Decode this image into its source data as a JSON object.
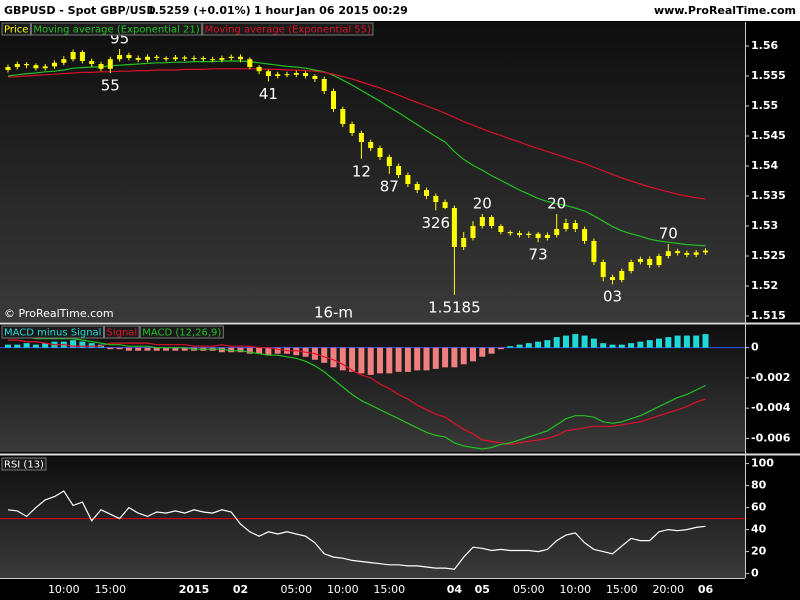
{
  "header": {
    "symbol": "GBPUSD - Spot GBP/USD",
    "quote": "1.5259 (+0.01%)",
    "timeframe": "1 hour",
    "timestamp": "Jan 06 2015 00:29",
    "website": "www.ProRealTime.com"
  },
  "chart_data": [
    {
      "type": "candlestick",
      "name": "Price",
      "color": "#ffff00",
      "source": "© ProRealTime.com",
      "categories": [
        null,
        null,
        null,
        null,
        null,
        null,
        "10:00",
        null,
        null,
        null,
        null,
        "15:00",
        null,
        null,
        null,
        null,
        null,
        null,
        null,
        null,
        "2015",
        null,
        null,
        null,
        null,
        "02",
        null,
        null,
        null,
        null,
        null,
        "05:00",
        null,
        null,
        null,
        null,
        "10:00",
        null,
        null,
        null,
        null,
        "15:00",
        null,
        null,
        null,
        null,
        null,
        null,
        "04",
        null,
        null,
        "05",
        null,
        null,
        null,
        null,
        "05:00",
        null,
        null,
        null,
        null,
        "10:00",
        null,
        null,
        null,
        null,
        "15:00",
        null,
        null,
        null,
        null,
        "20:00",
        null,
        null,
        null,
        "06"
      ],
      "open": [
        1.556,
        1.5565,
        1.557,
        1.5568,
        1.5563,
        1.5566,
        1.5572,
        1.5578,
        1.559,
        1.5575,
        1.557,
        1.5562,
        1.5578,
        1.5585,
        1.558,
        1.5577,
        1.5582,
        1.558,
        1.5578,
        1.5581,
        1.5579,
        1.558,
        1.5578,
        1.5577,
        1.558,
        1.5582,
        1.5578,
        1.5565,
        1.5558,
        1.555,
        1.5553,
        1.5552,
        1.5555,
        1.555,
        1.5545,
        1.5525,
        1.5495,
        1.547,
        1.5455,
        1.544,
        1.543,
        1.5415,
        1.54,
        1.5385,
        1.537,
        1.536,
        1.535,
        1.534,
        1.533,
        1.5265,
        1.528,
        1.53,
        1.5315,
        1.53,
        1.529,
        1.5288,
        1.5285,
        1.5287,
        1.528,
        1.5285,
        1.5295,
        1.5305,
        1.5295,
        1.5275,
        1.524,
        1.5215,
        1.521,
        1.5225,
        1.524,
        1.5245,
        1.5235,
        1.525,
        1.5258,
        1.5255,
        1.5252,
        1.5256
      ],
      "high": [
        1.5569,
        1.5574,
        1.5573,
        1.5571,
        1.557,
        1.5576,
        1.5583,
        1.5594,
        1.5593,
        1.5579,
        1.5574,
        1.5582,
        1.5595,
        1.5589,
        1.5584,
        1.5586,
        1.5585,
        1.5583,
        1.5585,
        1.5584,
        1.5584,
        1.5583,
        1.5582,
        1.5584,
        1.5586,
        1.5586,
        1.5581,
        1.5568,
        1.5561,
        1.5557,
        1.5557,
        1.5559,
        1.5558,
        1.5553,
        1.5549,
        1.5529,
        1.5499,
        1.5474,
        1.5459,
        1.5444,
        1.5434,
        1.5419,
        1.5404,
        1.5389,
        1.5374,
        1.5364,
        1.5354,
        1.5344,
        1.5334,
        1.529,
        1.5308,
        1.532,
        1.5318,
        1.5303,
        1.5293,
        1.5292,
        1.5291,
        1.529,
        1.5289,
        1.532,
        1.5312,
        1.531,
        1.5299,
        1.5279,
        1.5244,
        1.5219,
        1.5229,
        1.5244,
        1.5249,
        1.5249,
        1.5254,
        1.527,
        1.5262,
        1.5259,
        1.526,
        1.5263
      ],
      "low": [
        1.5556,
        1.5561,
        1.5563,
        1.5559,
        1.5559,
        1.5562,
        1.5568,
        1.5574,
        1.5571,
        1.5565,
        1.5558,
        1.5555,
        1.5574,
        1.5576,
        1.5573,
        1.5573,
        1.5576,
        1.5574,
        1.5575,
        1.5575,
        1.5575,
        1.5574,
        1.5573,
        1.5573,
        1.5576,
        1.5573,
        1.5561,
        1.5553,
        1.5541,
        1.5546,
        1.5548,
        1.5548,
        1.5546,
        1.554,
        1.552,
        1.549,
        1.5465,
        1.545,
        1.5412,
        1.5425,
        1.541,
        1.5387,
        1.538,
        1.5365,
        1.5355,
        1.5345,
        1.5326,
        1.5328,
        1.5185,
        1.526,
        1.5276,
        1.5296,
        1.5296,
        1.5286,
        1.5284,
        1.5281,
        1.528,
        1.5273,
        1.5276,
        1.5281,
        1.5291,
        1.529,
        1.527,
        1.5235,
        1.5208,
        1.5203,
        1.5206,
        1.5221,
        1.5236,
        1.523,
        1.5231,
        1.5246,
        1.5251,
        1.5248,
        1.5248,
        1.5252
      ],
      "close": [
        1.5565,
        1.557,
        1.5568,
        1.5563,
        1.5566,
        1.5572,
        1.5578,
        1.559,
        1.5575,
        1.557,
        1.5562,
        1.5578,
        1.5585,
        1.558,
        1.5577,
        1.5582,
        1.558,
        1.5578,
        1.5581,
        1.5579,
        1.558,
        1.5578,
        1.5577,
        1.558,
        1.5582,
        1.5578,
        1.5565,
        1.5558,
        1.555,
        1.5553,
        1.5552,
        1.5555,
        1.555,
        1.5545,
        1.5525,
        1.5495,
        1.547,
        1.5455,
        1.544,
        1.543,
        1.5415,
        1.54,
        1.5385,
        1.537,
        1.536,
        1.535,
        1.534,
        1.533,
        1.5265,
        1.528,
        1.53,
        1.5315,
        1.53,
        1.529,
        1.5288,
        1.5285,
        1.5287,
        1.528,
        1.5285,
        1.5295,
        1.5305,
        1.5295,
        1.5275,
        1.524,
        1.5215,
        1.521,
        1.5225,
        1.524,
        1.5245,
        1.5235,
        1.525,
        1.5258,
        1.5255,
        1.5252,
        1.5256,
        1.5259
      ],
      "series": [
        {
          "name": "Moving average (Exponential 21)",
          "color": "#22c022",
          "values": [
            1.555,
            1.5552,
            1.5554,
            1.5555,
            1.5557,
            1.5558,
            1.556,
            1.5563,
            1.5564,
            1.5565,
            1.5565,
            1.5567,
            1.5568,
            1.5569,
            1.557,
            1.5571,
            1.5572,
            1.5572,
            1.5573,
            1.5573,
            1.5574,
            1.5574,
            1.5574,
            1.5575,
            1.5575,
            1.5575,
            1.5574,
            1.5572,
            1.557,
            1.5568,
            1.5566,
            1.5565,
            1.5563,
            1.556,
            1.5557,
            1.5551,
            1.5543,
            1.5535,
            1.5526,
            1.5517,
            1.5508,
            1.5498,
            1.5489,
            1.5479,
            1.5469,
            1.5459,
            1.5449,
            1.544,
            1.5424,
            1.5411,
            1.5401,
            1.5393,
            1.5384,
            1.5376,
            1.5368,
            1.536,
            1.5353,
            1.5346,
            1.5341,
            1.5337,
            1.5334,
            1.533,
            1.5325,
            1.5317,
            1.5308,
            1.5299,
            1.5292,
            1.5287,
            1.5283,
            1.5278,
            1.5275,
            1.5273,
            1.5271,
            1.5269,
            1.5268,
            1.5267
          ]
        },
        {
          "name": "Moving average (Exponential 55)",
          "color": "#d8102a",
          "values": [
            1.5548,
            1.5549,
            1.555,
            1.5551,
            1.5552,
            1.5553,
            1.5554,
            1.5555,
            1.5556,
            1.5556,
            1.5557,
            1.5557,
            1.5558,
            1.5558,
            1.5559,
            1.5559,
            1.556,
            1.556,
            1.556,
            1.5561,
            1.5561,
            1.5561,
            1.5562,
            1.5562,
            1.5562,
            1.5562,
            1.5562,
            1.5562,
            1.5561,
            1.5561,
            1.556,
            1.556,
            1.5559,
            1.5558,
            1.5556,
            1.5553,
            1.5549,
            1.5545,
            1.554,
            1.5535,
            1.553,
            1.5524,
            1.5518,
            1.5512,
            1.5506,
            1.55,
            1.5494,
            1.5488,
            1.5481,
            1.5474,
            1.5468,
            1.5462,
            1.5456,
            1.5451,
            1.5445,
            1.544,
            1.5434,
            1.5429,
            1.5424,
            1.5419,
            1.5414,
            1.5409,
            1.5404,
            1.5398,
            1.5392,
            1.5386,
            1.538,
            1.5375,
            1.537,
            1.5365,
            1.5361,
            1.5357,
            1.5353,
            1.535,
            1.5347,
            1.5345
          ]
        }
      ],
      "annotations": [
        {
          "text": "55",
          "x": 11,
          "y": 1.5555
        },
        {
          "text": "95",
          "x": 12,
          "y": 1.5595
        },
        {
          "text": "41",
          "x": 28,
          "y": 1.5541
        },
        {
          "text": "12",
          "x": 38,
          "y": 1.5412
        },
        {
          "text": "87",
          "x": 41,
          "y": 1.5387
        },
        {
          "text": "326",
          "x": 46,
          "y": 1.5326
        },
        {
          "text": "1.5185",
          "x": 48,
          "y": 1.5185
        },
        {
          "text": "20",
          "x": 51,
          "y": 1.532
        },
        {
          "text": "73",
          "x": 57,
          "y": 1.5273
        },
        {
          "text": "20",
          "x": 59,
          "y": 1.532
        },
        {
          "text": "03",
          "x": 65,
          "y": 1.5203
        },
        {
          "text": "70",
          "x": 71,
          "y": 1.527
        },
        {
          "text": "16-m",
          "x": 35,
          "y": 1.5155
        }
      ],
      "ylim": [
        1.514,
        1.564
      ],
      "yticks": [
        1.515,
        1.52,
        1.525,
        1.53,
        1.535,
        1.54,
        1.545,
        1.55,
        1.555,
        1.56
      ]
    },
    {
      "type": "indicator",
      "series": [
        {
          "name": "MACD minus Signal",
          "type": "bar",
          "color": "#20d8d8",
          "negative_color": "#f08080",
          "values": [
            0.0002,
            0.0002,
            0.0003,
            0.0002,
            0.0003,
            0.0004,
            0.0004,
            0.0005,
            0.0004,
            0.0003,
            0.0002,
            -0.0001,
            -0.0001,
            -0.0002,
            -0.0002,
            -0.0002,
            -0.0002,
            -0.0002,
            -0.0002,
            -0.0002,
            -0.0002,
            -0.0002,
            -0.0002,
            -0.0003,
            -0.0003,
            -0.0003,
            -0.0004,
            -0.0004,
            -0.0005,
            -0.0004,
            -0.0004,
            -0.0005,
            -0.0006,
            -0.0008,
            -0.001,
            -0.0013,
            -0.0015,
            -0.0016,
            -0.0017,
            -0.0018,
            -0.0017,
            -0.0017,
            -0.0016,
            -0.0016,
            -0.0015,
            -0.0015,
            -0.0014,
            -0.0013,
            -0.0013,
            -0.0011,
            -0.0009,
            -0.0006,
            -0.0004,
            -0.0001,
            0.0001,
            0.0002,
            0.0003,
            0.0004,
            0.0005,
            0.0007,
            0.0008,
            0.0009,
            0.0008,
            0.0006,
            0.0003,
            0.0002,
            0.0002,
            0.0003,
            0.0004,
            0.0005,
            0.0006,
            0.0007,
            0.0008,
            0.0008,
            0.0008,
            0.0009
          ]
        },
        {
          "name": "Signal",
          "type": "line",
          "color": "#e0102a",
          "values": [
            0.0005,
            0.0005,
            0.0004,
            0.0004,
            0.0003,
            0.0002,
            0.0002,
            0.0001,
            0.0001,
            0.0001,
            0.0001,
            0.0003,
            0.0003,
            0.0003,
            0.0003,
            0.0003,
            0.0002,
            0.0002,
            0.0002,
            0.0002,
            0.0001,
            0.0001,
            0.0001,
            0.0002,
            0.0001,
            0.0001,
            0.0001,
            0.0,
            0.0,
            -0.0001,
            -0.0002,
            -0.0002,
            -0.0003,
            -0.0004,
            -0.0006,
            -0.0008,
            -0.0011,
            -0.0015,
            -0.0018,
            -0.002,
            -0.0024,
            -0.0027,
            -0.0031,
            -0.0034,
            -0.0038,
            -0.0041,
            -0.0044,
            -0.0046,
            -0.005,
            -0.0054,
            -0.0057,
            -0.0061,
            -0.0062,
            -0.0063,
            -0.0064,
            -0.0063,
            -0.0062,
            -0.0061,
            -0.006,
            -0.0058,
            -0.0055,
            -0.0054,
            -0.0053,
            -0.0052,
            -0.0052,
            -0.0052,
            -0.0051,
            -0.005,
            -0.0049,
            -0.0047,
            -0.0045,
            -0.0043,
            -0.0041,
            -0.0039,
            -0.0036,
            -0.0034
          ]
        },
        {
          "name": "MACD (12,26,9)",
          "type": "line",
          "color": "#22c022",
          "values": [
            0.0007,
            0.0007,
            0.0007,
            0.0006,
            0.0006,
            0.0006,
            0.0006,
            0.0006,
            0.0005,
            0.0004,
            0.0003,
            0.0002,
            0.0002,
            0.0001,
            0.0001,
            0.0001,
            0.0,
            0.0,
            0.0,
            0.0,
            -0.0001,
            -0.0001,
            -0.0001,
            -0.0001,
            -0.0002,
            -0.0002,
            -0.0003,
            -0.0004,
            -0.0005,
            -0.0005,
            -0.0006,
            -0.0007,
            -0.0009,
            -0.0012,
            -0.0016,
            -0.0021,
            -0.0026,
            -0.0031,
            -0.0035,
            -0.0038,
            -0.0041,
            -0.0044,
            -0.0047,
            -0.005,
            -0.0053,
            -0.0056,
            -0.0058,
            -0.0059,
            -0.0063,
            -0.0065,
            -0.0066,
            -0.0067,
            -0.0066,
            -0.0064,
            -0.0063,
            -0.0061,
            -0.0059,
            -0.0057,
            -0.0055,
            -0.0051,
            -0.0047,
            -0.0045,
            -0.0045,
            -0.0046,
            -0.0049,
            -0.005,
            -0.0049,
            -0.0047,
            -0.0045,
            -0.0042,
            -0.0039,
            -0.0036,
            -0.0033,
            -0.0031,
            -0.0028,
            -0.0025
          ]
        }
      ],
      "zero_line": {
        "value": 0,
        "color": "#3050ff"
      },
      "ylim": [
        -0.0069,
        0.0015
      ],
      "yticks": [
        -0.006,
        -0.004,
        -0.002,
        0
      ]
    },
    {
      "type": "indicator",
      "series": [
        {
          "name": "RSI (13)",
          "type": "line",
          "color": "#ffffff",
          "values": [
            58,
            57,
            52,
            60,
            67,
            70,
            75,
            62,
            65,
            48,
            58,
            54,
            50,
            60,
            55,
            52,
            56,
            55,
            57,
            55,
            58,
            56,
            55,
            58,
            56,
            45,
            38,
            34,
            38,
            36,
            38,
            36,
            34,
            28,
            18,
            15,
            14,
            12,
            11,
            10,
            9,
            8,
            8,
            7,
            7,
            6,
            5,
            5,
            4,
            15,
            24,
            23,
            21,
            22,
            21,
            21,
            21,
            20,
            22,
            30,
            35,
            37,
            28,
            22,
            20,
            18,
            25,
            32,
            30,
            30,
            38,
            40,
            39,
            40,
            42,
            43
          ]
        }
      ],
      "zero_line": {
        "value": 50,
        "color": "#e00000"
      },
      "ylim": [
        -4,
        106
      ],
      "yticks": [
        0,
        20,
        40,
        60,
        80,
        100
      ]
    }
  ]
}
